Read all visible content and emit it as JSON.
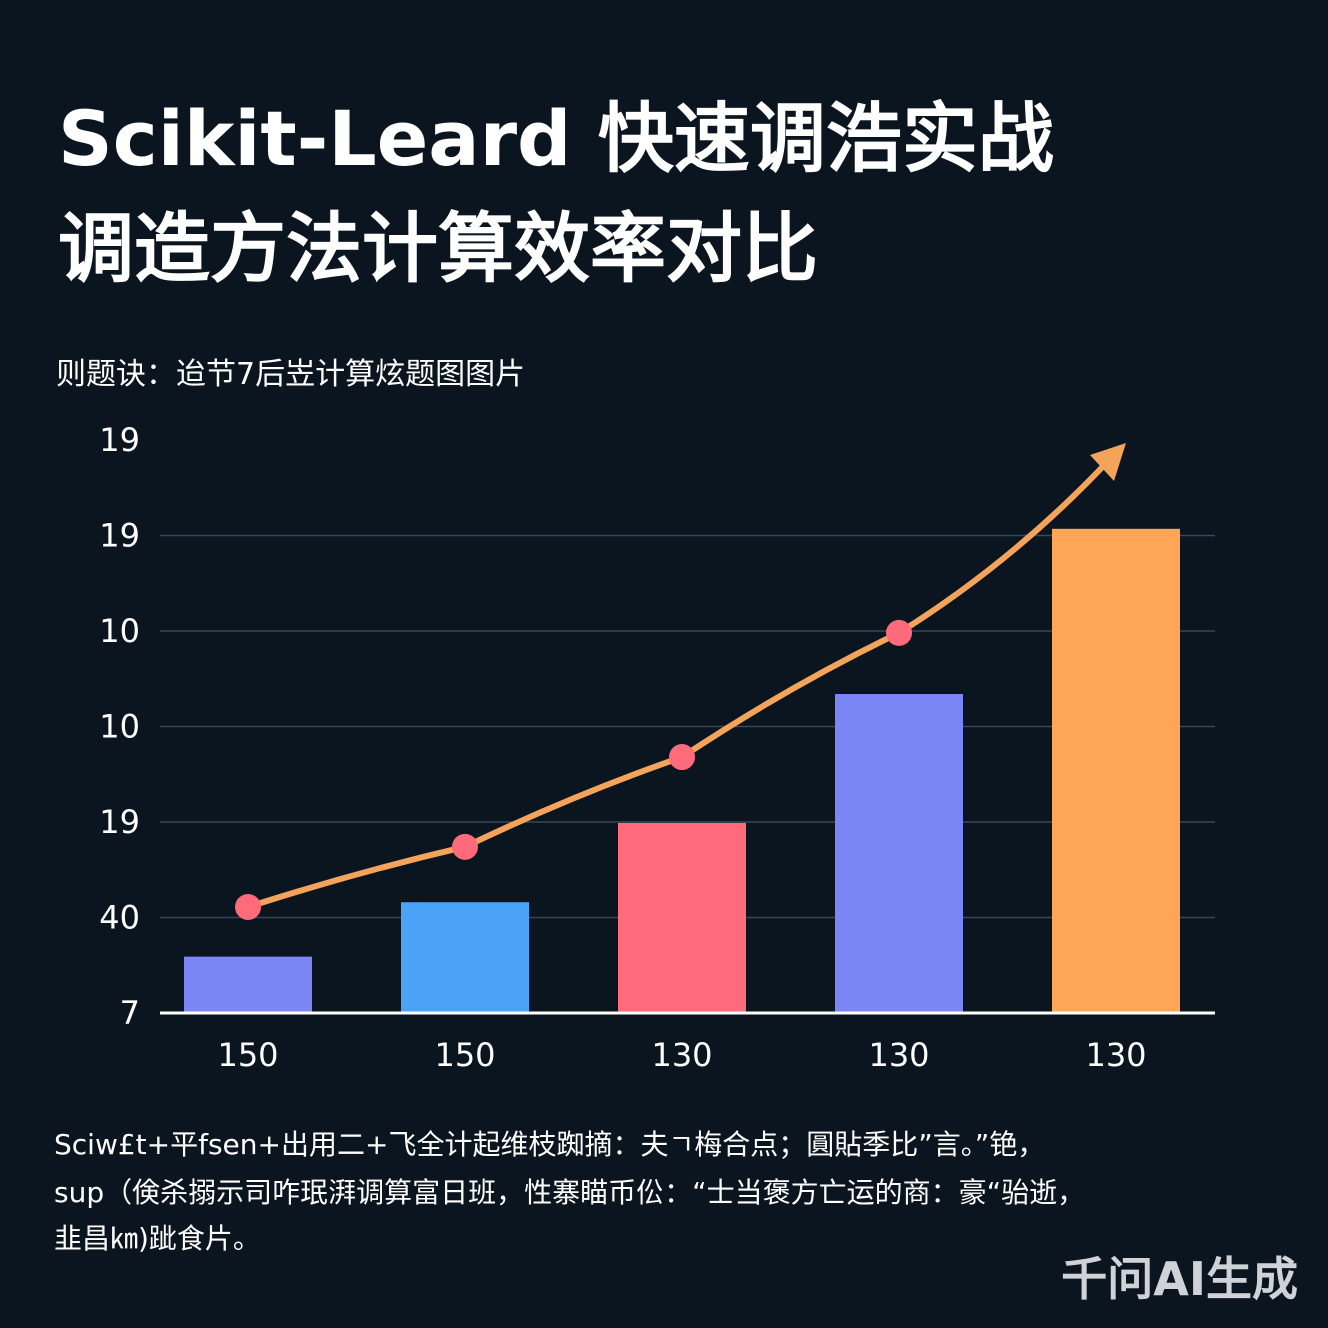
{
  "chart_data": {
    "type": "bar",
    "title": [
      "Scikit-Leard 快速调浩实战",
      "调造方法计算效率对比"
    ],
    "subtitle": "则题诀：迨节7后岦计算炫题图图片",
    "categories": [
      "150",
      "150",
      "130",
      "130",
      "130"
    ],
    "series": [
      {
        "type": "bar",
        "colors": [
          "#7b86f5",
          "#4aa3f7",
          "#ff6b7a",
          "#7b86f5",
          "#ffa557"
        ],
        "values": [
          0.59,
          1.16,
          1.99,
          3.34,
          5.07
        ]
      },
      {
        "type": "line",
        "color": "#f4a35a",
        "marker_color": "#ff6b7a",
        "values": [
          1.11,
          1.74,
          2.68,
          3.98,
          null
        ]
      }
    ],
    "ylim": [
      0,
      6
    ],
    "yticks": [
      {
        "value": 0,
        "label": "7"
      },
      {
        "value": 1,
        "label": "40"
      },
      {
        "value": 2,
        "label": "19"
      },
      {
        "value": 3,
        "label": "10"
      },
      {
        "value": 4,
        "label": "10"
      },
      {
        "value": 5,
        "label": "19"
      },
      {
        "value": 6,
        "label": "19"
      }
    ],
    "grid": true,
    "footnote": [
      "Sciw£t+平fsen+出用二+飞全计起维枝踟摘：夫ㄱ梅合点；圓貼季比”言。”铯，",
      "sup（倹杀搦示司咋珉湃调算富日班，性寨瞄币伀：“士当褒方亡运的商：豪“骀逝，",
      "韭昌㎞)跐食片。"
    ],
    "watermark": "千问AI生成"
  }
}
